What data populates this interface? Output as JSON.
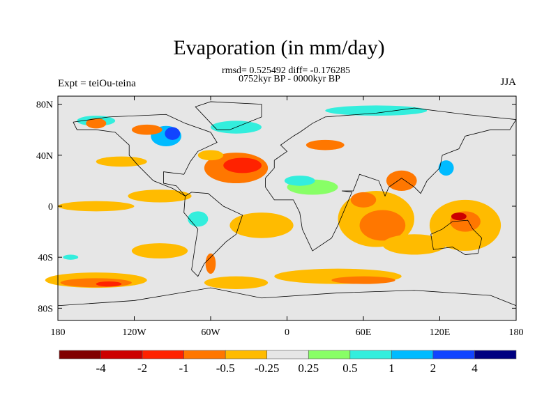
{
  "title": "Evaporation (in mm/day)",
  "stats": "rmsd= 0.525492 diff= -0.176285",
  "period": "0752kyr BP - 0000kyr BP",
  "experiment": "Expt = teiOu-teina",
  "season": "JJA",
  "map": {
    "background_color": "#e6e6e6",
    "lon_ticks": [
      "180",
      "120W",
      "60W",
      "0",
      "60E",
      "120E",
      "180"
    ],
    "lat_ticks": [
      "80N",
      "40N",
      "0",
      "40S",
      "80S"
    ]
  },
  "colorbar": {
    "colors": [
      "#800000",
      "#cc0000",
      "#ff2200",
      "#ff7700",
      "#ffbb00",
      "#e6e6e6",
      "#88ff66",
      "#33eedd",
      "#00bbff",
      "#1144ff",
      "#000080"
    ],
    "labels": [
      "-4",
      "-2",
      "-1",
      "-0.5",
      "-0.25",
      "0.25",
      "0.5",
      "1",
      "2",
      "4"
    ]
  }
}
